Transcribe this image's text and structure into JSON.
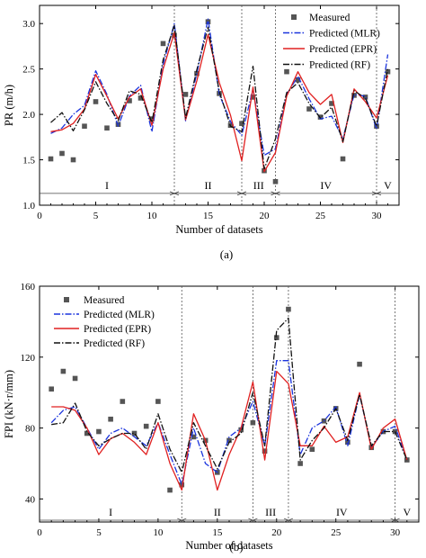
{
  "chart_data": [
    {
      "type": "line",
      "panel_label": "(a)",
      "xlabel": "Number of datasets",
      "ylabel": "PR (m/h)",
      "xlim": [
        0,
        32
      ],
      "ylim": [
        1.0,
        3.2
      ],
      "xticks": [
        0,
        5,
        10,
        15,
        20,
        25,
        30
      ],
      "yticks": [
        1.0,
        1.5,
        2.0,
        2.5,
        3.0
      ],
      "ytick_labels": [
        "1.0",
        "1.5",
        "2.0",
        "2.5",
        "3.0"
      ],
      "legend_position": "top-right",
      "section_dividers": [
        12,
        18,
        21,
        30
      ],
      "section_arrow_y": 1.13,
      "section_labels": [
        {
          "text": "I",
          "x": 6
        },
        {
          "text": "II",
          "x": 15
        },
        {
          "text": "III",
          "x": 19.5
        },
        {
          "text": "IV",
          "x": 25.5
        },
        {
          "text": "V",
          "x": 31
        }
      ],
      "x": [
        1,
        2,
        3,
        4,
        5,
        6,
        7,
        8,
        9,
        10,
        11,
        12,
        13,
        14,
        15,
        16,
        17,
        18,
        19,
        20,
        21,
        22,
        23,
        24,
        25,
        26,
        27,
        28,
        29,
        30,
        31
      ],
      "series": [
        {
          "name": "Measured",
          "style": "marker",
          "color": "#555555",
          "values": [
            1.51,
            1.57,
            1.5,
            1.87,
            2.14,
            1.85,
            1.89,
            2.15,
            2.18,
            1.95,
            2.78,
            2.87,
            2.22,
            2.45,
            3.02,
            2.23,
            1.88,
            1.9,
            2.19,
            1.38,
            1.26,
            2.47,
            2.38,
            2.06,
            1.97,
            2.12,
            1.51,
            2.21,
            2.19,
            1.87,
            2.47
          ]
        },
        {
          "name": "Predicted (MLR)",
          "style": "dashdot",
          "color": "#1a33dd",
          "values": [
            1.79,
            1.85,
            2.0,
            2.1,
            2.48,
            2.22,
            1.87,
            2.2,
            2.32,
            1.81,
            2.55,
            3.0,
            1.93,
            2.45,
            3.05,
            2.22,
            1.92,
            1.77,
            2.28,
            1.55,
            1.62,
            2.22,
            2.42,
            2.17,
            1.95,
            1.98,
            1.73,
            2.22,
            2.2,
            1.84,
            2.66
          ]
        },
        {
          "name": "Predicted (EPR)",
          "style": "solid",
          "color": "#e02020",
          "values": [
            1.81,
            1.83,
            1.9,
            2.06,
            2.44,
            2.2,
            1.95,
            2.19,
            2.28,
            1.88,
            2.5,
            2.9,
            1.94,
            2.37,
            2.88,
            2.35,
            1.99,
            1.49,
            2.3,
            1.37,
            1.58,
            2.2,
            2.47,
            2.24,
            2.11,
            2.22,
            1.69,
            2.28,
            2.14,
            1.96,
            2.43
          ]
        },
        {
          "name": "Predicted (RF)",
          "style": "dashdot",
          "color": "#111111",
          "values": [
            1.91,
            2.02,
            1.82,
            2.05,
            2.36,
            2.12,
            1.93,
            2.26,
            2.22,
            1.91,
            2.6,
            2.98,
            1.96,
            2.49,
            2.96,
            2.25,
            1.87,
            1.81,
            2.53,
            1.4,
            1.73,
            2.24,
            2.35,
            2.12,
            1.96,
            2.08,
            1.7,
            2.26,
            2.18,
            1.87,
            2.5
          ]
        }
      ]
    },
    {
      "type": "line",
      "panel_label": "(b)",
      "xlabel": "Number of datasets",
      "ylabel": "FPI (kN·r/mm)",
      "xlim": [
        0,
        32
      ],
      "ylim": [
        27,
        160
      ],
      "xticks": [
        0,
        5,
        10,
        15,
        20,
        25,
        30
      ],
      "yticks": [
        40,
        80,
        120,
        160
      ],
      "ytick_labels": [
        "40",
        "80",
        "120",
        "160"
      ],
      "legend_position": "top-left",
      "section_dividers": [
        12,
        18,
        21,
        30
      ],
      "section_arrow_y": 28,
      "section_labels": [
        {
          "text": "I",
          "x": 6
        },
        {
          "text": "II",
          "x": 15
        },
        {
          "text": "III",
          "x": 19.5
        },
        {
          "text": "IV",
          "x": 25.5
        },
        {
          "text": "V",
          "x": 31
        }
      ],
      "x": [
        1,
        2,
        3,
        4,
        5,
        6,
        7,
        8,
        9,
        10,
        11,
        12,
        13,
        14,
        15,
        16,
        17,
        18,
        19,
        20,
        21,
        22,
        23,
        24,
        25,
        26,
        27,
        28,
        29,
        30,
        31
      ],
      "series": [
        {
          "name": "Measured",
          "style": "marker",
          "color": "#555555",
          "values": [
            102,
            112,
            108,
            77,
            78,
            85,
            95,
            77,
            81,
            95,
            45,
            48,
            75,
            73,
            55,
            73,
            79,
            83,
            67,
            131,
            147,
            60,
            68,
            84,
            91,
            72,
            116,
            69,
            78,
            78,
            62
          ]
        },
        {
          "name": "Predicted (MLR)",
          "style": "dashdot",
          "color": "#1a33dd",
          "values": [
            83,
            90,
            92,
            80,
            68,
            77,
            80,
            75,
            70,
            83,
            65,
            48,
            80,
            60,
            55,
            75,
            80,
            95,
            70,
            118,
            118,
            65,
            80,
            84,
            92,
            70,
            99,
            69,
            78,
            81,
            62
          ]
        },
        {
          "name": "Predicted (EPR)",
          "style": "solid",
          "color": "#e02020",
          "values": [
            92,
            92,
            90,
            80,
            65,
            74,
            77,
            72,
            65,
            83,
            60,
            45,
            88,
            73,
            45,
            65,
            80,
            106,
            62,
            112,
            105,
            70,
            70,
            81,
            72,
            75,
            100,
            68,
            80,
            85,
            62
          ]
        },
        {
          "name": "Predicted (RF)",
          "style": "dashdot",
          "color": "#111111",
          "values": [
            82,
            83,
            94,
            78,
            70,
            74,
            77,
            77,
            68,
            88,
            68,
            55,
            83,
            70,
            57,
            72,
            77,
            100,
            70,
            135,
            142,
            62,
            73,
            80,
            91,
            73,
            99,
            70,
            78,
            78,
            62
          ]
        }
      ]
    }
  ]
}
